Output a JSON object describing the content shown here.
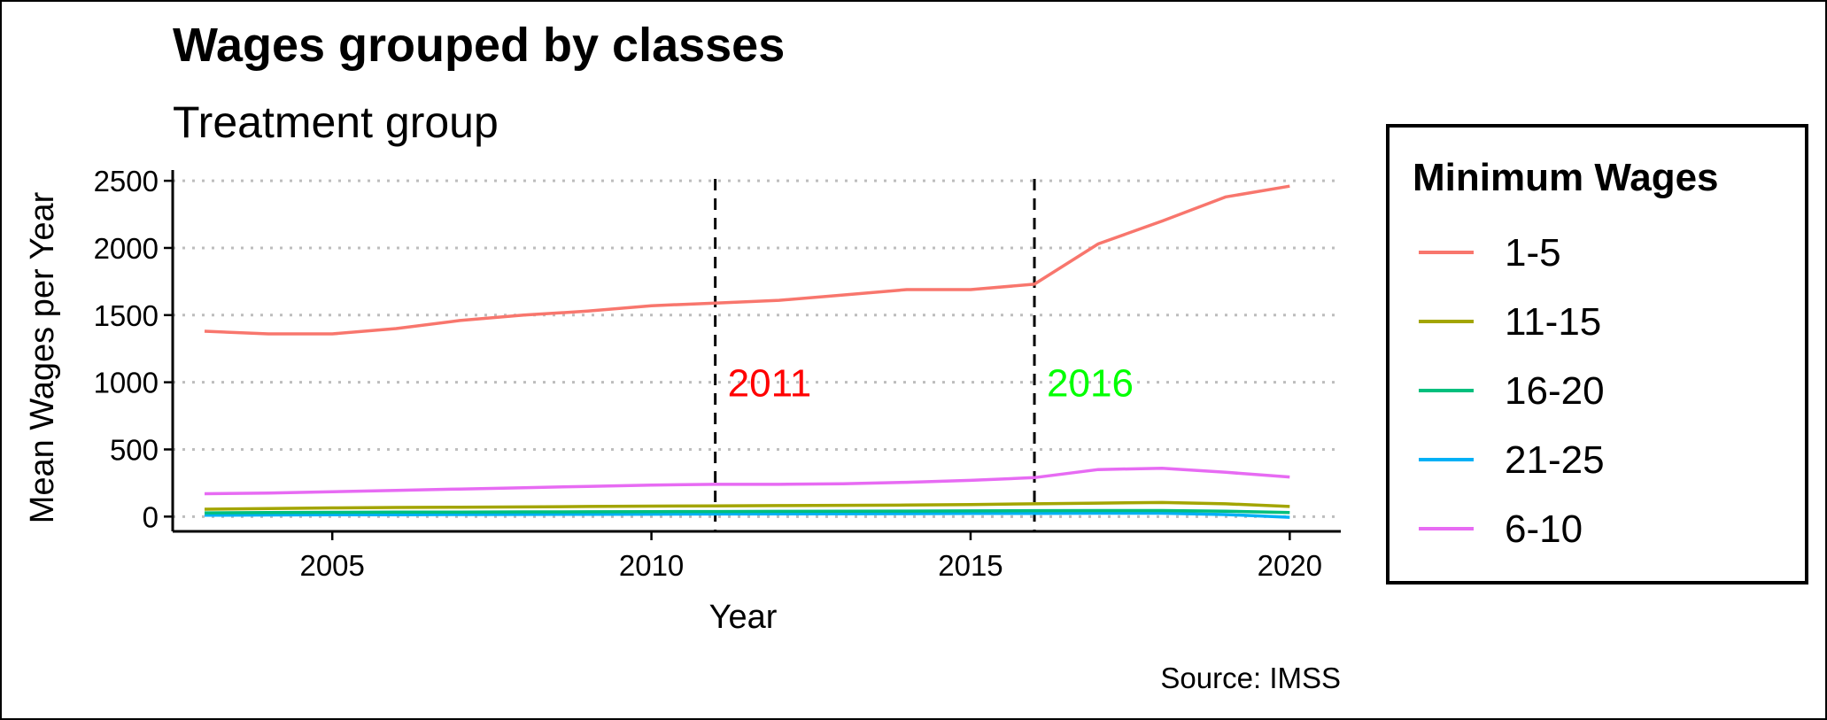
{
  "chart_data": {
    "type": "line",
    "title": "Wages grouped by classes",
    "subtitle": "Treatment group",
    "xlabel": "Year",
    "ylabel": "Mean Wages per Year",
    "caption": "Source: IMSS",
    "xlim": [
      2002.5,
      2020.8
    ],
    "ylim": [
      -110,
      2580
    ],
    "x_ticks": [
      2005,
      2010,
      2015,
      2020
    ],
    "y_ticks": [
      0,
      500,
      1000,
      1500,
      2000,
      2500
    ],
    "grid": "horizontal dotted major",
    "legend": {
      "title": "Minimum Wages",
      "position": "right"
    },
    "x": [
      2003,
      2004,
      2005,
      2006,
      2007,
      2008,
      2009,
      2010,
      2011,
      2012,
      2013,
      2014,
      2015,
      2016,
      2017,
      2018,
      2019,
      2020
    ],
    "series": [
      {
        "name": "1-5",
        "color": "#F8766D",
        "values": [
          1380,
          1360,
          1360,
          1400,
          1460,
          1500,
          1530,
          1570,
          1590,
          1610,
          1650,
          1690,
          1690,
          1730,
          2030,
          2200,
          2380,
          2460
        ]
      },
      {
        "name": "11-15",
        "color": "#A3A500",
        "values": [
          55,
          60,
          65,
          68,
          70,
          72,
          75,
          78,
          80,
          82,
          84,
          86,
          90,
          95,
          100,
          105,
          95,
          75
        ]
      },
      {
        "name": "16-20",
        "color": "#00BF7D",
        "values": [
          28,
          30,
          32,
          33,
          34,
          35,
          36,
          37,
          38,
          39,
          40,
          41,
          42,
          44,
          45,
          45,
          40,
          30
        ]
      },
      {
        "name": "21-25",
        "color": "#00B0F6",
        "values": [
          10,
          12,
          13,
          14,
          15,
          16,
          17,
          18,
          19,
          20,
          21,
          22,
          23,
          24,
          25,
          25,
          15,
          -5
        ]
      },
      {
        "name": "6-10",
        "color": "#E76BF3",
        "values": [
          170,
          175,
          185,
          195,
          205,
          215,
          225,
          235,
          240,
          240,
          245,
          255,
          270,
          290,
          350,
          360,
          330,
          295
        ]
      }
    ],
    "vlines": [
      {
        "x": 2011,
        "label": "2011",
        "label_y": 1000,
        "label_color": "#FF0000"
      },
      {
        "x": 2016,
        "label": "2016",
        "label_y": 1000,
        "label_color": "#00FF00"
      }
    ]
  }
}
